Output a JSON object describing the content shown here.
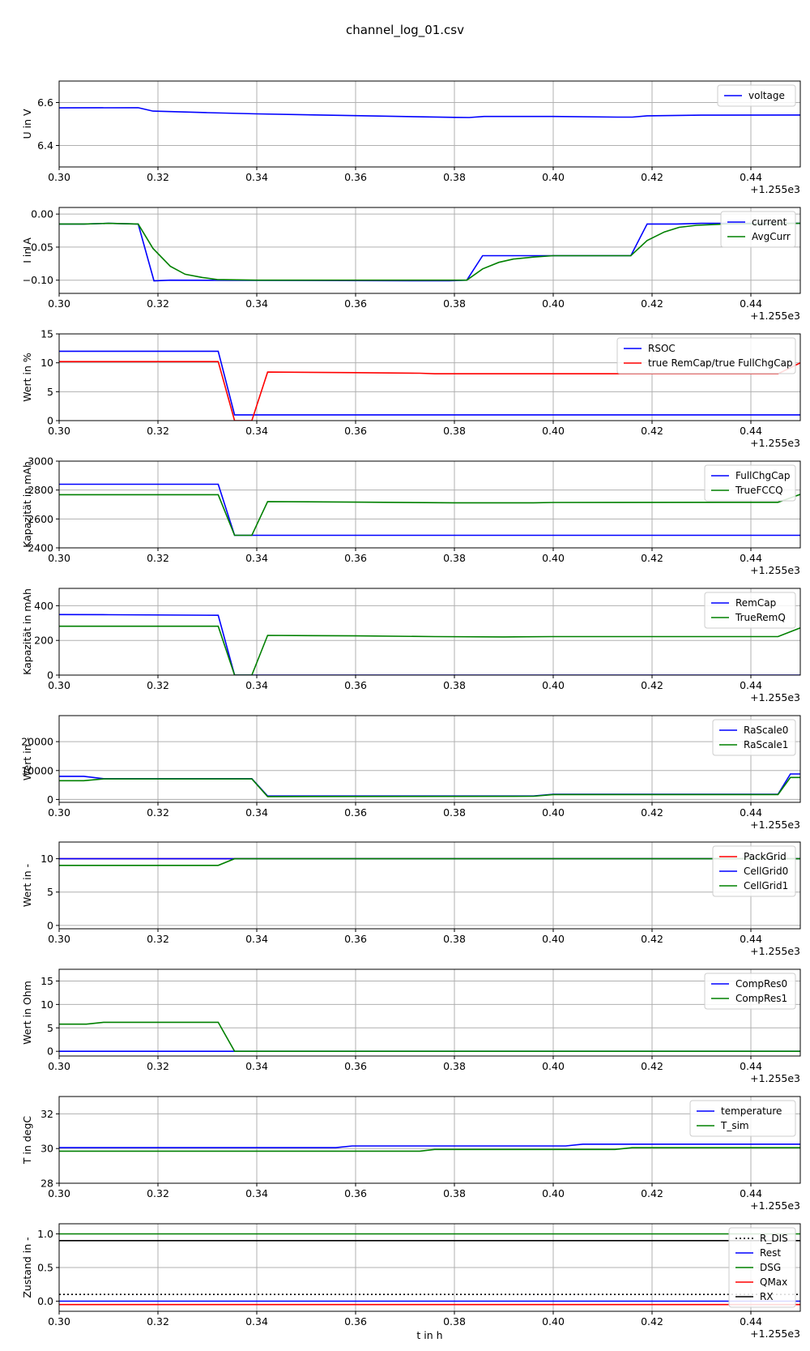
{
  "title": "channel_log_01.csv",
  "x_offset_label": "+1.255e3",
  "xlabel": "t in h",
  "chart_data": [
    {
      "type": "line",
      "ylabel": "U in V",
      "xlim": [
        0.3,
        0.45
      ],
      "ylim": [
        6.3,
        6.7
      ],
      "xticks": [
        0.3,
        0.32,
        0.34,
        0.36,
        0.38,
        0.4,
        0.42,
        0.44
      ],
      "yticks": [
        6.4,
        6.6
      ],
      "ytick_labels": [
        "6.4",
        "6.6"
      ],
      "series": [
        {
          "name": "voltage",
          "color": "#0000ff",
          "x": [
            0.3,
            0.316,
            0.319,
            0.33,
            0.34,
            0.36,
            0.38,
            0.383,
            0.386,
            0.4,
            0.413,
            0.416,
            0.419,
            0.43,
            0.45
          ],
          "y": [
            6.575,
            6.576,
            6.56,
            6.553,
            6.547,
            6.539,
            6.531,
            6.53,
            6.535,
            6.535,
            6.532,
            6.532,
            6.538,
            6.541,
            6.542
          ]
        }
      ]
    },
    {
      "type": "line",
      "ylabel": "I in A",
      "xlim": [
        0.3,
        0.45
      ],
      "ylim": [
        -0.12,
        0.01
      ],
      "xticks": [
        0.3,
        0.32,
        0.34,
        0.36,
        0.38,
        0.4,
        0.42,
        0.44
      ],
      "yticks": [
        -0.1,
        -0.05,
        0.0
      ],
      "ytick_labels": [
        "−0.10",
        "−0.05",
        "0.00"
      ],
      "series": [
        {
          "name": "current",
          "color": "#0000ff",
          "x": [
            0.3,
            0.305,
            0.31,
            0.316,
            0.3192,
            0.3225,
            0.379,
            0.3825,
            0.3857,
            0.4157,
            0.419,
            0.425,
            0.43,
            0.45
          ],
          "y": [
            -0.015,
            -0.015,
            -0.014,
            -0.015,
            -0.101,
            -0.1,
            -0.101,
            -0.1,
            -0.063,
            -0.063,
            -0.015,
            -0.015,
            -0.014,
            -0.014
          ]
        },
        {
          "name": "AvgCurr",
          "color": "#008000",
          "x": [
            0.3,
            0.305,
            0.31,
            0.316,
            0.319,
            0.3225,
            0.3255,
            0.329,
            0.332,
            0.34,
            0.3825,
            0.3857,
            0.389,
            0.392,
            0.396,
            0.4,
            0.4157,
            0.419,
            0.4225,
            0.4255,
            0.429,
            0.435,
            0.45
          ],
          "y": [
            -0.015,
            -0.015,
            -0.014,
            -0.015,
            -0.052,
            -0.079,
            -0.091,
            -0.096,
            -0.099,
            -0.1,
            -0.1,
            -0.083,
            -0.073,
            -0.068,
            -0.065,
            -0.063,
            -0.063,
            -0.04,
            -0.027,
            -0.02,
            -0.017,
            -0.015,
            -0.014
          ]
        }
      ]
    },
    {
      "type": "line",
      "ylabel": "Wert in %",
      "xlim": [
        0.3,
        0.45
      ],
      "ylim": [
        0,
        15
      ],
      "xticks": [
        0.3,
        0.32,
        0.34,
        0.36,
        0.38,
        0.4,
        0.42,
        0.44
      ],
      "yticks": [
        0,
        5,
        10,
        15
      ],
      "ytick_labels": [
        "0",
        "5",
        "10",
        "15"
      ],
      "series": [
        {
          "name": "RSOC",
          "color": "#0000ff",
          "x": [
            0.3,
            0.3322,
            0.3355,
            0.45
          ],
          "y": [
            12,
            12,
            1,
            1
          ]
        },
        {
          "name": "true RemCap/true FullChgCap",
          "color": "#ff0000",
          "x": [
            0.3,
            0.3322,
            0.3355,
            0.339,
            0.3422,
            0.36,
            0.373,
            0.376,
            0.4,
            0.4455,
            0.45
          ],
          "y": [
            10.2,
            10.2,
            0,
            0,
            8.4,
            8.3,
            8.2,
            8.1,
            8.1,
            8.1,
            10.0
          ]
        }
      ]
    },
    {
      "type": "line",
      "ylabel": "Kapazität in mAh",
      "xlim": [
        0.3,
        0.45
      ],
      "ylim": [
        2400,
        3000
      ],
      "xticks": [
        0.3,
        0.32,
        0.34,
        0.36,
        0.38,
        0.4,
        0.42,
        0.44
      ],
      "yticks": [
        2400,
        2600,
        2800,
        3000
      ],
      "ytick_labels": [
        "2400",
        "2600",
        "2800",
        "3000"
      ],
      "series": [
        {
          "name": "FullChgCap",
          "color": "#0000ff",
          "x": [
            0.3,
            0.3322,
            0.3355,
            0.45
          ],
          "y": [
            2840,
            2840,
            2487,
            2487
          ]
        },
        {
          "name": "TrueFCCQ",
          "color": "#008000",
          "x": [
            0.3,
            0.3322,
            0.3355,
            0.339,
            0.3422,
            0.36,
            0.38,
            0.396,
            0.4,
            0.4455,
            0.45
          ],
          "y": [
            2768,
            2768,
            2487,
            2487,
            2720,
            2716,
            2712,
            2712,
            2714,
            2715,
            2770
          ]
        }
      ]
    },
    {
      "type": "line",
      "ylabel": "Kapazität in mAh",
      "xlim": [
        0.3,
        0.45
      ],
      "ylim": [
        0,
        500
      ],
      "xticks": [
        0.3,
        0.32,
        0.34,
        0.36,
        0.38,
        0.4,
        0.42,
        0.44
      ],
      "yticks": [
        0,
        200,
        400
      ],
      "ytick_labels": [
        "0",
        "200",
        "400"
      ],
      "series": [
        {
          "name": "RemCap",
          "color": "#0000ff",
          "x": [
            0.3,
            0.31,
            0.3322,
            0.3355,
            0.45
          ],
          "y": [
            349,
            348,
            345,
            0,
            0
          ]
        },
        {
          "name": "TrueRemQ",
          "color": "#008000",
          "x": [
            0.3,
            0.3322,
            0.3355,
            0.339,
            0.3422,
            0.36,
            0.376,
            0.39,
            0.4,
            0.4455,
            0.45
          ],
          "y": [
            282,
            282,
            0,
            0,
            229,
            226,
            222,
            220,
            222,
            222,
            272
          ]
        }
      ]
    },
    {
      "type": "line",
      "ylabel": "Wert in -",
      "xlim": [
        0.3,
        0.45
      ],
      "ylim": [
        -1000,
        29000
      ],
      "xticks": [
        0.3,
        0.32,
        0.34,
        0.36,
        0.38,
        0.4,
        0.42,
        0.44
      ],
      "yticks": [
        0,
        10000,
        20000
      ],
      "ytick_labels": [
        "0",
        "10000",
        "20000"
      ],
      "series": [
        {
          "name": "RaScale0",
          "color": "#0000ff",
          "x": [
            0.3,
            0.305,
            0.309,
            0.339,
            0.3422,
            0.396,
            0.4,
            0.4455,
            0.448,
            0.45
          ],
          "y": [
            8000,
            8000,
            7200,
            7200,
            1200,
            1200,
            1800,
            1800,
            8800,
            8800
          ]
        },
        {
          "name": "RaScale1",
          "color": "#008000",
          "x": [
            0.3,
            0.305,
            0.309,
            0.339,
            0.3422,
            0.396,
            0.4,
            0.4455,
            0.448,
            0.45
          ],
          "y": [
            6500,
            6500,
            7100,
            7100,
            1000,
            1100,
            1700,
            1700,
            7600,
            7600
          ]
        }
      ]
    },
    {
      "type": "line",
      "ylabel": "Wert in -",
      "xlim": [
        0.3,
        0.45
      ],
      "ylim": [
        -0.5,
        12.5
      ],
      "xticks": [
        0.3,
        0.32,
        0.34,
        0.36,
        0.38,
        0.4,
        0.42,
        0.44
      ],
      "yticks": [
        0,
        5,
        10
      ],
      "ytick_labels": [
        "0",
        "5",
        "10"
      ],
      "series": [
        {
          "name": "PackGrid",
          "color": "#ff0000",
          "x": [
            0.3,
            0.45
          ],
          "y": [
            10,
            10
          ]
        },
        {
          "name": "CellGrid0",
          "color": "#0000ff",
          "x": [
            0.3,
            0.3355,
            0.45
          ],
          "y": [
            10,
            10,
            10
          ]
        },
        {
          "name": "CellGrid1",
          "color": "#008000",
          "x": [
            0.3,
            0.3322,
            0.3355,
            0.45
          ],
          "y": [
            9,
            9,
            10,
            10
          ]
        }
      ]
    },
    {
      "type": "line",
      "ylabel": "Wert in Ohm",
      "xlim": [
        0.3,
        0.45
      ],
      "ylim": [
        -1,
        17.5
      ],
      "xticks": [
        0.3,
        0.32,
        0.34,
        0.36,
        0.38,
        0.4,
        0.42,
        0.44
      ],
      "yticks": [
        0,
        5,
        10,
        15
      ],
      "ytick_labels": [
        "0",
        "5",
        "10",
        "15"
      ],
      "series": [
        {
          "name": "CompRes0",
          "color": "#0000ff",
          "x": [
            0.3,
            0.3322,
            0.3355,
            0.45
          ],
          "y": [
            0,
            0,
            0,
            0
          ]
        },
        {
          "name": "CompRes1",
          "color": "#008000",
          "x": [
            0.3,
            0.3055,
            0.309,
            0.3322,
            0.3355,
            0.45
          ],
          "y": [
            5.8,
            5.8,
            6.2,
            6.2,
            0,
            0
          ]
        }
      ]
    },
    {
      "type": "line",
      "ylabel": "T in degC",
      "xlim": [
        0.3,
        0.45
      ],
      "ylim": [
        28,
        33
      ],
      "xticks": [
        0.3,
        0.32,
        0.34,
        0.36,
        0.38,
        0.4,
        0.42,
        0.44
      ],
      "yticks": [
        28,
        30,
        32
      ],
      "ytick_labels": [
        "28",
        "30",
        "32"
      ],
      "series": [
        {
          "name": "temperature",
          "color": "#0000ff",
          "x": [
            0.3,
            0.356,
            0.3593,
            0.4025,
            0.406,
            0.45
          ],
          "y": [
            30.05,
            30.05,
            30.15,
            30.15,
            30.25,
            30.25
          ]
        },
        {
          "name": "T_sim",
          "color": "#008000",
          "x": [
            0.3,
            0.373,
            0.376,
            0.4125,
            0.416,
            0.45
          ],
          "y": [
            29.85,
            29.85,
            29.95,
            29.95,
            30.05,
            30.05
          ]
        }
      ]
    },
    {
      "type": "line",
      "ylabel": "Zustand in -",
      "xlim": [
        0.3,
        0.45
      ],
      "ylim": [
        -0.15,
        1.15
      ],
      "xticks": [
        0.3,
        0.32,
        0.34,
        0.36,
        0.38,
        0.4,
        0.42,
        0.44
      ],
      "yticks": [
        0.0,
        0.5,
        1.0
      ],
      "ytick_labels": [
        "0.0",
        "0.5",
        "1.0"
      ],
      "series": [
        {
          "name": "R_DIS",
          "color": "#000000",
          "dash": "dotted",
          "x": [
            0.3,
            0.45
          ],
          "y": [
            0.1,
            0.1
          ]
        },
        {
          "name": "Rest",
          "color": "#0000ff",
          "x": [
            0.3,
            0.45
          ],
          "y": [
            0.0,
            0.0
          ]
        },
        {
          "name": "DSG",
          "color": "#008000",
          "x": [
            0.3,
            0.45
          ],
          "y": [
            1.0,
            1.0
          ]
        },
        {
          "name": "QMax",
          "color": "#ff0000",
          "x": [
            0.3,
            0.45
          ],
          "y": [
            -0.05,
            -0.05
          ]
        },
        {
          "name": "RX",
          "color": "#000000",
          "x": [
            0.3,
            0.45
          ],
          "y": [
            0.9,
            0.9
          ]
        }
      ]
    }
  ]
}
